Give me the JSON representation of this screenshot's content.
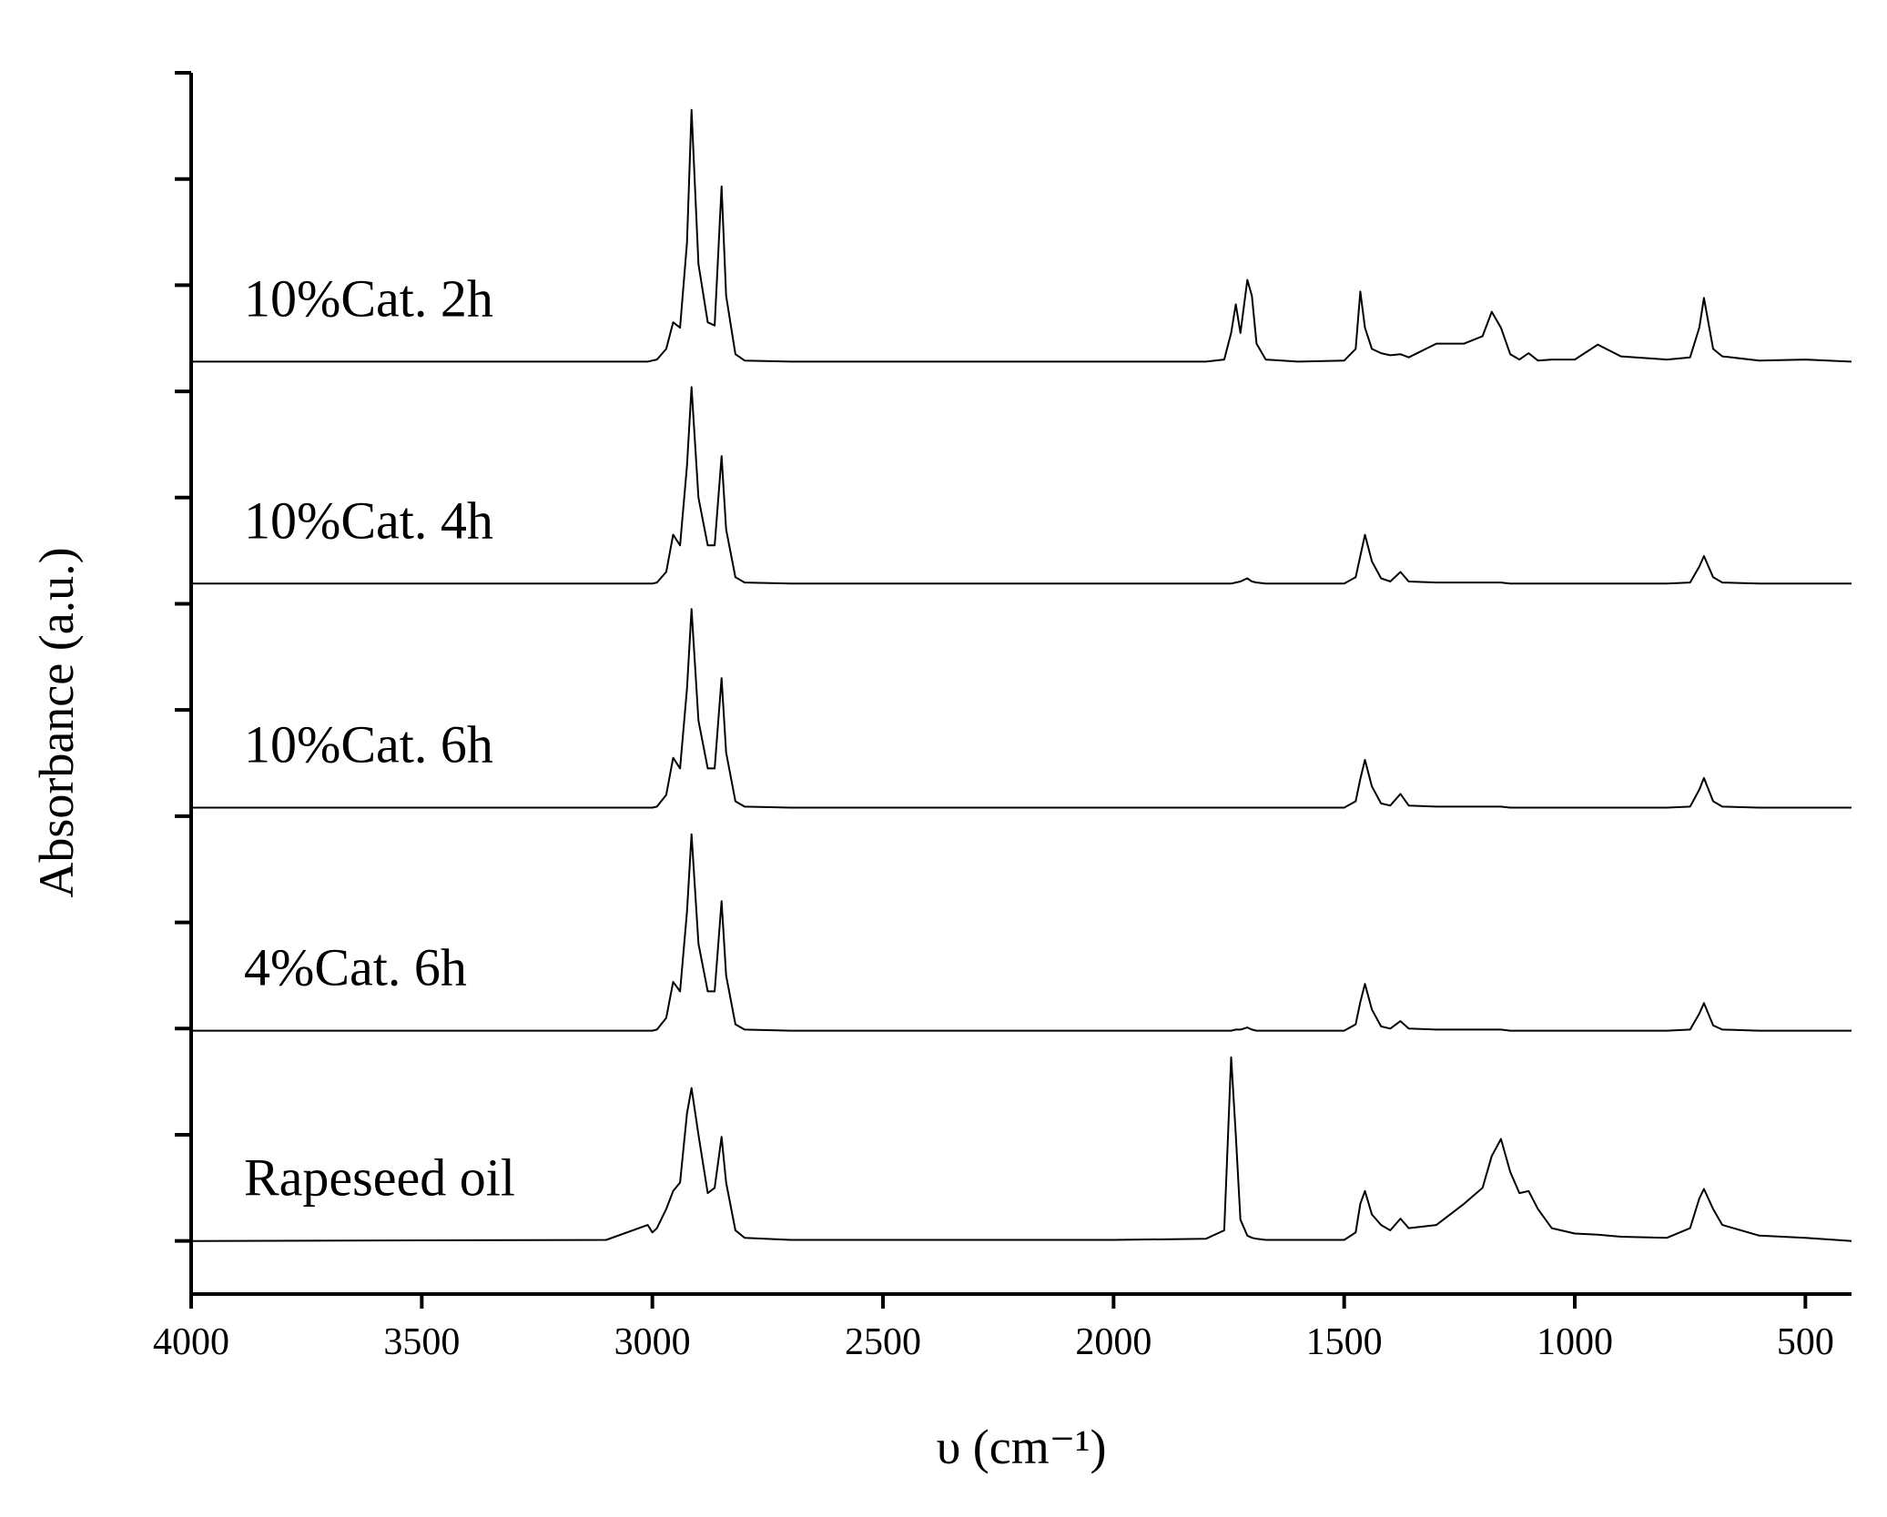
{
  "chart_data": {
    "type": "line",
    "xlabel": "υ (cm⁻¹)",
    "ylabel": "Absorbance (a.u.)",
    "xlim": [
      4000,
      400
    ],
    "xticks": [
      4000,
      3500,
      3000,
      2500,
      2000,
      1500,
      1000,
      500
    ],
    "ylim": [
      -0.5,
      11
    ],
    "yticks": [
      0,
      1,
      2,
      3,
      4,
      5,
      6,
      7,
      8,
      9,
      10,
      11
    ],
    "x": [
      4000,
      3100,
      3010,
      3000,
      2990,
      2970,
      2955,
      2940,
      2925,
      2915,
      2900,
      2880,
      2865,
      2850,
      2840,
      2820,
      2800,
      2700,
      2000,
      1800,
      1760,
      1745,
      1735,
      1725,
      1710,
      1700,
      1690,
      1670,
      1600,
      1500,
      1475,
      1465,
      1455,
      1440,
      1420,
      1400,
      1378,
      1360,
      1300,
      1240,
      1200,
      1180,
      1160,
      1140,
      1120,
      1100,
      1080,
      1050,
      1000,
      950,
      900,
      800,
      750,
      730,
      720,
      700,
      680,
      600,
      500,
      400
    ],
    "series": [
      {
        "name": "10%Cat. 2h",
        "color": "#000000",
        "values": [
          8.28,
          8.28,
          8.28,
          8.29,
          8.3,
          8.4,
          8.65,
          8.6,
          9.4,
          10.65,
          9.2,
          8.65,
          8.62,
          9.93,
          8.9,
          8.35,
          8.29,
          8.28,
          8.28,
          8.28,
          8.3,
          8.55,
          8.82,
          8.55,
          9.05,
          8.9,
          8.45,
          8.3,
          8.28,
          8.29,
          8.4,
          8.94,
          8.6,
          8.4,
          8.36,
          8.34,
          8.35,
          8.32,
          8.45,
          8.45,
          8.52,
          8.75,
          8.6,
          8.35,
          8.3,
          8.36,
          8.29,
          8.3,
          8.3,
          8.44,
          8.33,
          8.3,
          8.32,
          8.6,
          8.88,
          8.4,
          8.33,
          8.29,
          8.3,
          8.28
        ]
      },
      {
        "name": "10%Cat. 4h",
        "color": "#000000",
        "values": [
          6.19,
          6.19,
          6.19,
          6.19,
          6.2,
          6.3,
          6.65,
          6.55,
          7.3,
          8.04,
          7.0,
          6.55,
          6.55,
          7.39,
          6.7,
          6.25,
          6.2,
          6.19,
          6.19,
          6.19,
          6.19,
          6.19,
          6.2,
          6.21,
          6.24,
          6.21,
          6.2,
          6.19,
          6.19,
          6.19,
          6.25,
          6.45,
          6.65,
          6.4,
          6.24,
          6.21,
          6.3,
          6.21,
          6.2,
          6.2,
          6.2,
          6.2,
          6.2,
          6.19,
          6.19,
          6.19,
          6.19,
          6.19,
          6.19,
          6.19,
          6.19,
          6.19,
          6.2,
          6.35,
          6.45,
          6.25,
          6.2,
          6.19,
          6.19,
          6.19
        ]
      },
      {
        "name": "10%Cat. 6h",
        "color": "#000000",
        "values": [
          4.08,
          4.08,
          4.08,
          4.08,
          4.09,
          4.2,
          4.55,
          4.45,
          5.2,
          5.95,
          4.9,
          4.45,
          4.45,
          5.3,
          4.6,
          4.14,
          4.09,
          4.08,
          4.08,
          4.08,
          4.08,
          4.08,
          4.08,
          4.08,
          4.08,
          4.08,
          4.08,
          4.08,
          4.08,
          4.08,
          4.14,
          4.35,
          4.53,
          4.28,
          4.12,
          4.1,
          4.21,
          4.1,
          4.09,
          4.09,
          4.09,
          4.09,
          4.09,
          4.08,
          4.08,
          4.08,
          4.08,
          4.08,
          4.08,
          4.08,
          4.08,
          4.08,
          4.09,
          4.25,
          4.36,
          4.14,
          4.09,
          4.08,
          4.08,
          4.08
        ]
      },
      {
        "name": "4%Cat. 6h",
        "color": "#000000",
        "values": [
          1.98,
          1.98,
          1.98,
          1.98,
          1.99,
          2.1,
          2.44,
          2.35,
          3.1,
          3.83,
          2.8,
          2.35,
          2.35,
          3.2,
          2.5,
          2.04,
          1.99,
          1.98,
          1.98,
          1.98,
          1.98,
          1.98,
          1.99,
          1.99,
          2.01,
          1.99,
          1.98,
          1.98,
          1.98,
          1.98,
          2.04,
          2.25,
          2.42,
          2.18,
          2.02,
          2.0,
          2.07,
          2.0,
          1.99,
          1.99,
          1.99,
          1.99,
          1.99,
          1.98,
          1.98,
          1.98,
          1.98,
          1.98,
          1.98,
          1.98,
          1.98,
          1.98,
          1.99,
          2.14,
          2.24,
          2.03,
          1.99,
          1.98,
          1.98,
          1.98
        ]
      },
      {
        "name": "Rapeseed oil",
        "color": "#000000",
        "values": [
          0.0,
          0.01,
          0.15,
          0.08,
          0.12,
          0.3,
          0.47,
          0.55,
          1.2,
          1.44,
          1.0,
          0.45,
          0.5,
          0.98,
          0.55,
          0.1,
          0.03,
          0.01,
          0.01,
          0.02,
          0.1,
          1.73,
          1.0,
          0.2,
          0.05,
          0.03,
          0.02,
          0.01,
          0.01,
          0.01,
          0.08,
          0.35,
          0.47,
          0.25,
          0.15,
          0.1,
          0.21,
          0.12,
          0.15,
          0.35,
          0.5,
          0.8,
          0.96,
          0.65,
          0.45,
          0.47,
          0.3,
          0.12,
          0.07,
          0.06,
          0.04,
          0.03,
          0.12,
          0.4,
          0.49,
          0.3,
          0.15,
          0.05,
          0.03,
          0.0
        ]
      }
    ]
  }
}
